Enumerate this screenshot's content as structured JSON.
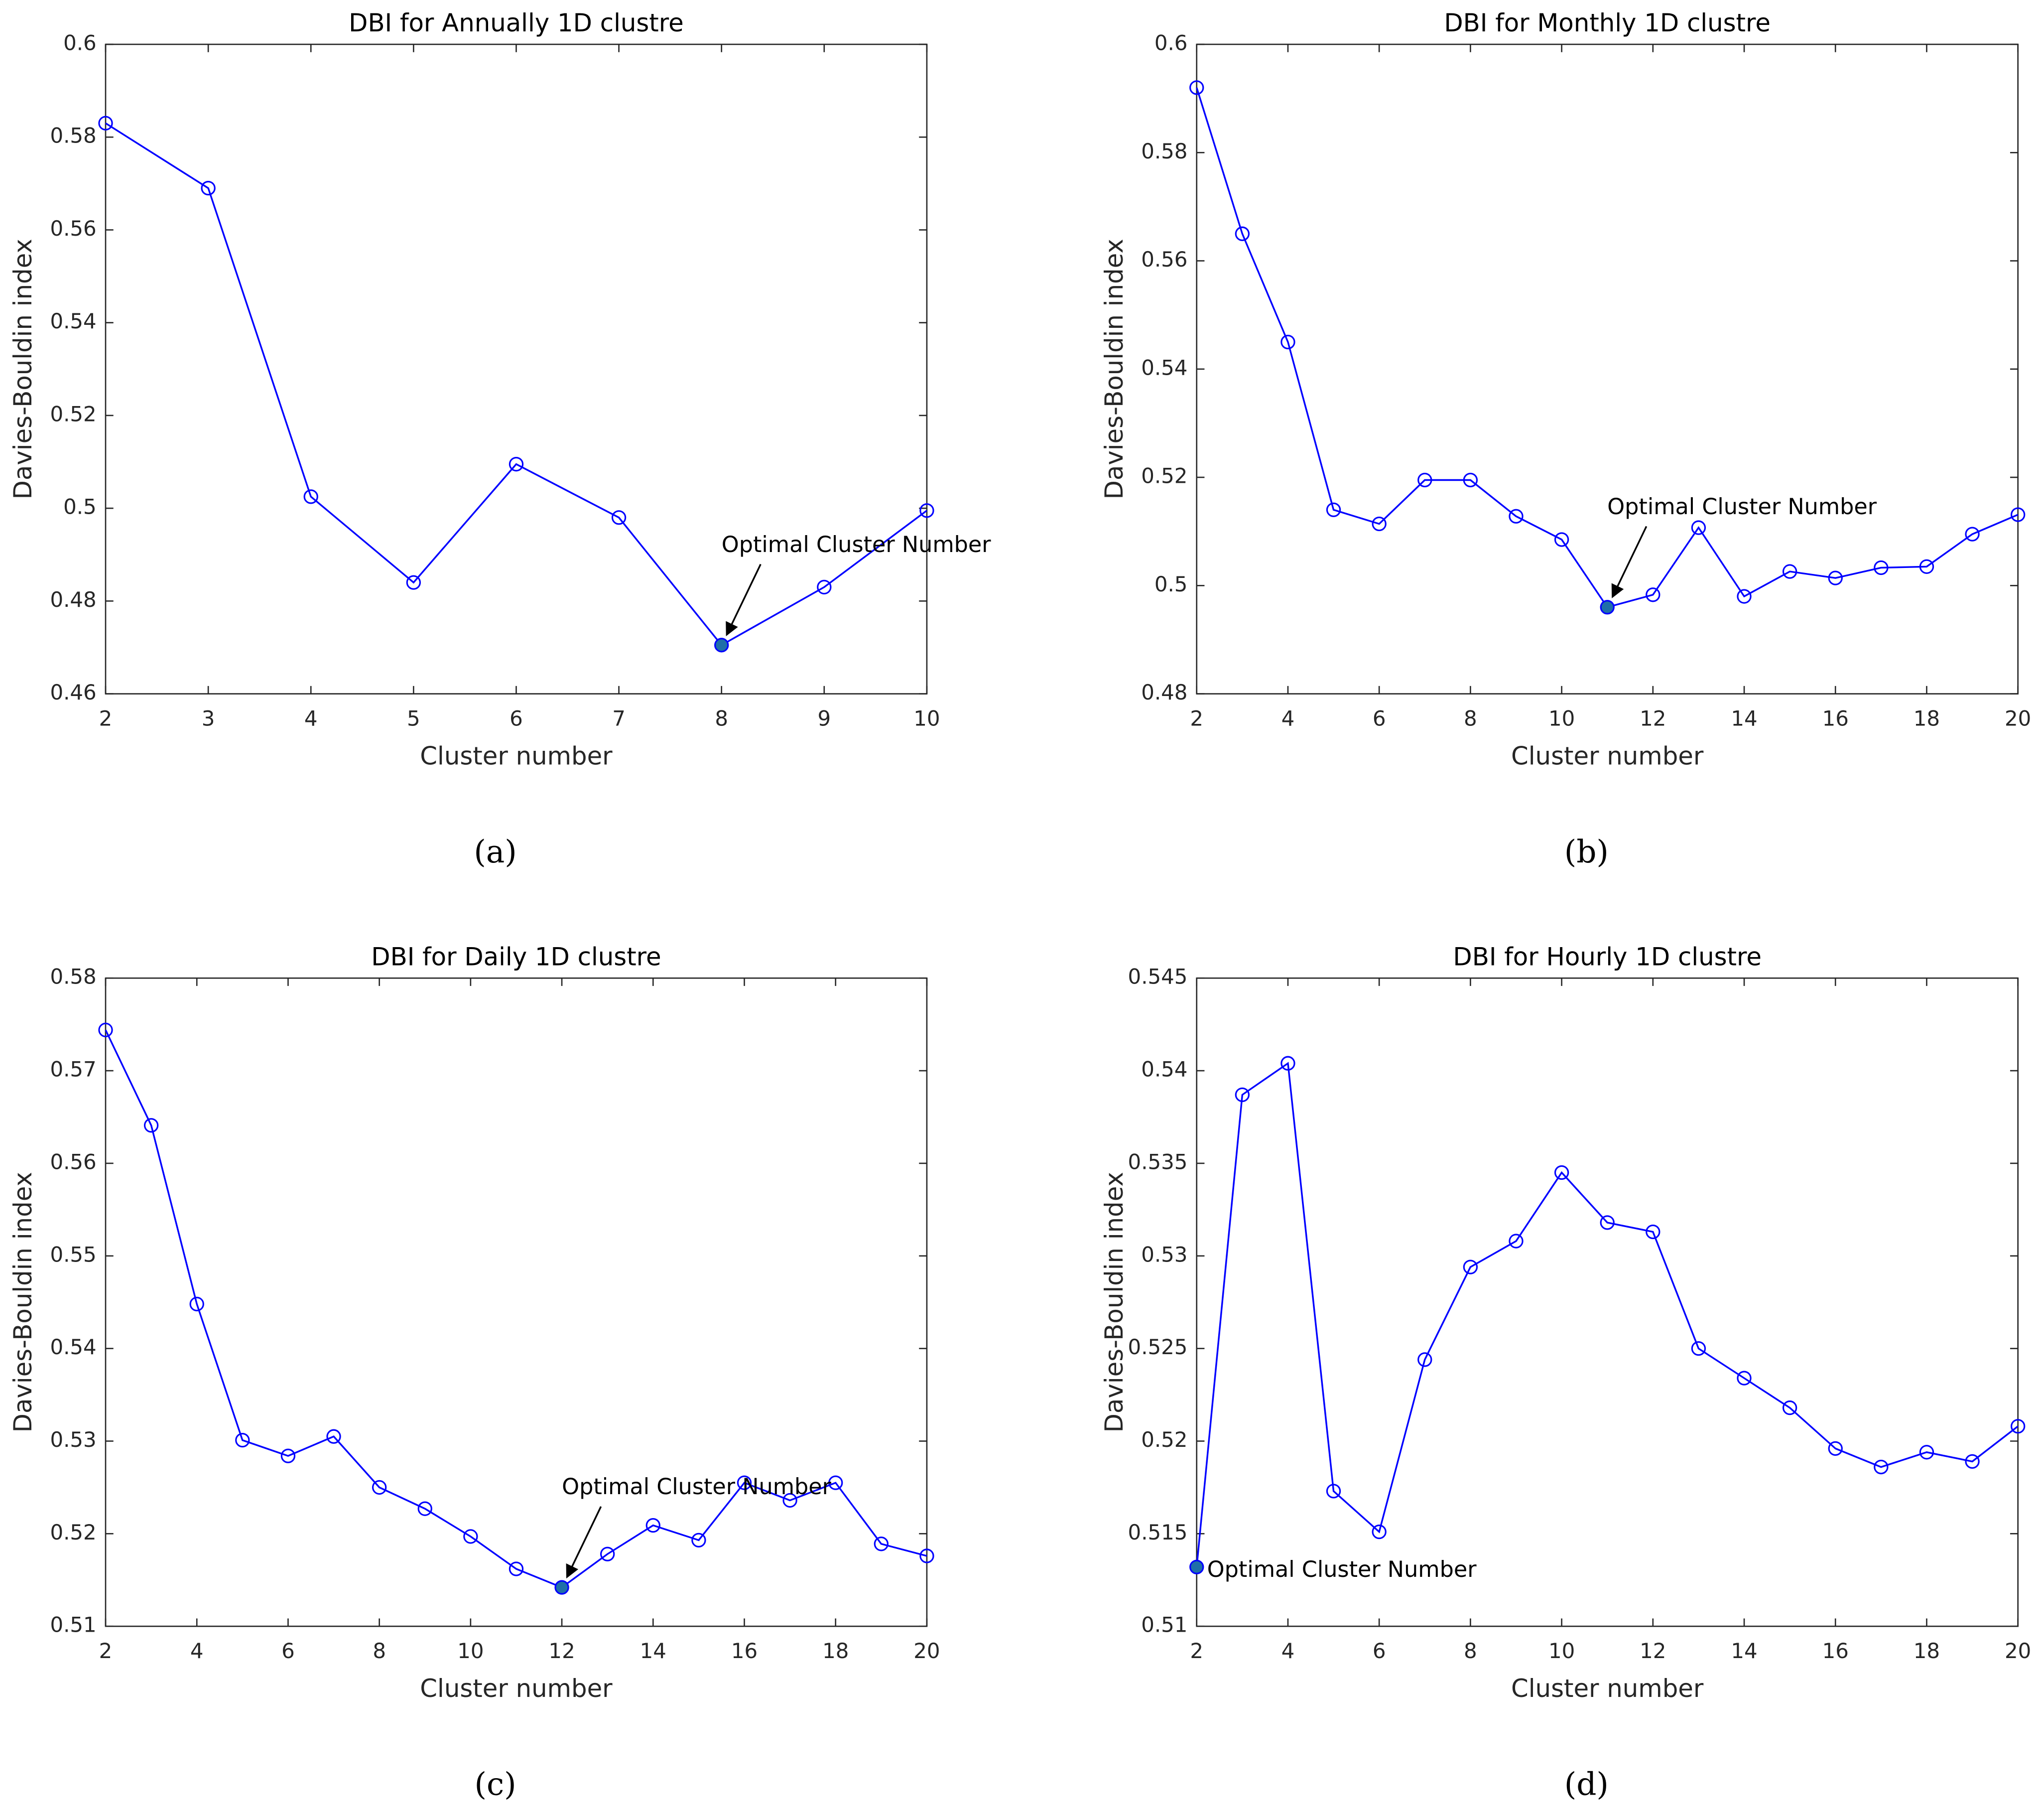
{
  "chart_data": [
    {
      "type": "line",
      "title": "DBI for Annually 1D clustre",
      "x_label": "Cluster number",
      "y_label": "Davies-Bouldin index",
      "caption": "(a)",
      "x": [
        2,
        3,
        4,
        5,
        6,
        7,
        8,
        9,
        10
      ],
      "values": [
        0.583,
        0.569,
        0.5025,
        0.484,
        0.5095,
        0.498,
        0.4705,
        0.483,
        0.4995
      ],
      "color": "#0000ff",
      "xlim": [
        2,
        10
      ],
      "ylim": [
        0.46,
        0.6
      ],
      "xticks": [
        2,
        3,
        4,
        5,
        6,
        7,
        8,
        9,
        10
      ],
      "yticks": [
        0.46,
        0.48,
        0.5,
        0.52,
        0.54,
        0.56,
        0.58,
        0.6
      ],
      "annotation": {
        "text": "Optimal Cluster Number",
        "x": 8,
        "arrow": true
      }
    },
    {
      "type": "line",
      "title": "DBI for Monthly 1D clustre",
      "x_label": "Cluster number",
      "y_label": "Davies-Bouldin index",
      "caption": "(b)",
      "x": [
        2,
        3,
        4,
        5,
        6,
        7,
        8,
        9,
        10,
        11,
        12,
        13,
        14,
        15,
        16,
        17,
        18,
        19,
        20
      ],
      "values": [
        0.592,
        0.565,
        0.545,
        0.514,
        0.5114,
        0.5195,
        0.5195,
        0.5128,
        0.5085,
        0.496,
        0.4983,
        0.5107,
        0.498,
        0.5026,
        0.5014,
        0.5033,
        0.5035,
        0.5095,
        0.5131
      ],
      "color": "#0000ff",
      "xlim": [
        2,
        20
      ],
      "ylim": [
        0.48,
        0.6
      ],
      "xticks": [
        2,
        4,
        6,
        8,
        10,
        12,
        14,
        16,
        18,
        20
      ],
      "yticks": [
        0.48,
        0.5,
        0.52,
        0.54,
        0.56,
        0.58,
        0.6
      ],
      "annotation": {
        "text": "Optimal Cluster Number",
        "x": 11,
        "arrow": true
      }
    },
    {
      "type": "line",
      "title": "DBI for Daily 1D clustre",
      "x_label": "Cluster number",
      "y_label": "Davies-Bouldin index",
      "caption": "(c)",
      "x": [
        2,
        3,
        4,
        5,
        6,
        7,
        8,
        9,
        10,
        11,
        12,
        13,
        14,
        15,
        16,
        17,
        18,
        19,
        20
      ],
      "values": [
        0.5744,
        0.5641,
        0.5448,
        0.5301,
        0.5284,
        0.5305,
        0.525,
        0.5227,
        0.5197,
        0.5162,
        0.5142,
        0.5178,
        0.5209,
        0.5193,
        0.5255,
        0.5236,
        0.5255,
        0.5189,
        0.5176
      ],
      "color": "#0000ff",
      "xlim": [
        2,
        20
      ],
      "ylim": [
        0.51,
        0.58
      ],
      "xticks": [
        2,
        4,
        6,
        8,
        10,
        12,
        14,
        16,
        18,
        20
      ],
      "yticks": [
        0.51,
        0.52,
        0.53,
        0.54,
        0.55,
        0.56,
        0.57,
        0.58
      ],
      "annotation": {
        "text": "Optimal Cluster Number",
        "x": 12,
        "arrow": true
      }
    },
    {
      "type": "line",
      "title": "DBI for Hourly 1D clustre",
      "x_label": "Cluster number",
      "y_label": "Davies-Bouldin index",
      "caption": "(d)",
      "x": [
        2,
        3,
        4,
        5,
        6,
        7,
        8,
        9,
        10,
        11,
        12,
        13,
        14,
        15,
        16,
        17,
        18,
        19,
        20
      ],
      "values": [
        0.5132,
        0.5387,
        0.5404,
        0.5173,
        0.5151,
        0.5244,
        0.5294,
        0.5308,
        0.5345,
        0.5318,
        0.5313,
        0.525,
        0.5234,
        0.5218,
        0.5196,
        0.5186,
        0.5194,
        0.5189,
        0.5208
      ],
      "color": "#0000ff",
      "xlim": [
        2,
        20
      ],
      "ylim": [
        0.51,
        0.545
      ],
      "xticks": [
        2,
        4,
        6,
        8,
        10,
        12,
        14,
        16,
        18,
        20
      ],
      "yticks": [
        0.51,
        0.515,
        0.52,
        0.525,
        0.53,
        0.535,
        0.54,
        0.545
      ],
      "annotation": {
        "text": "Optimal Cluster Number",
        "x": 2,
        "arrow": false
      }
    }
  ]
}
